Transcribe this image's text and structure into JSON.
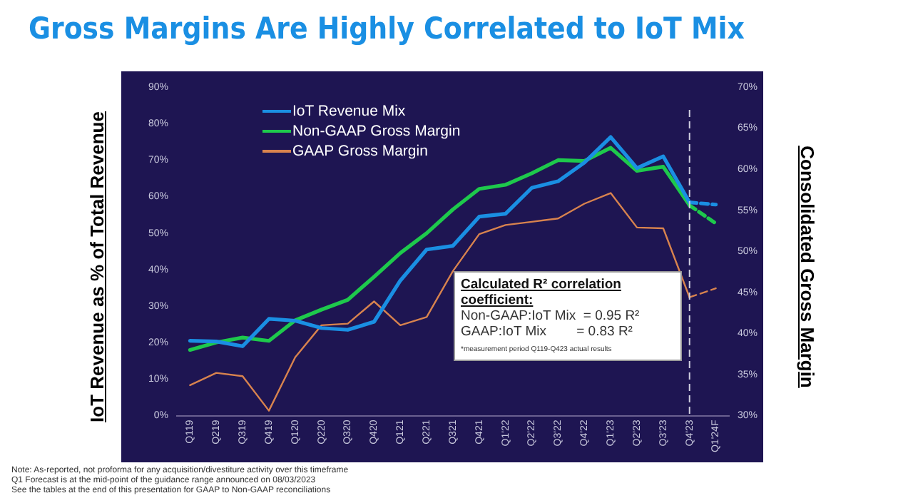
{
  "chart_data": {
    "type": "line",
    "title": "Gross Margins Are Highly Correlated to IoT Mix",
    "ylabel": "IoT Revenue  as % of Total Revenue",
    "y2label": "Consolidated Gross Margin",
    "categories": [
      "Q119",
      "Q219",
      "Q319",
      "Q419",
      "Q120",
      "Q220",
      "Q320",
      "Q420",
      "Q121",
      "Q221",
      "Q321",
      "Q421",
      "Q1'22",
      "Q2'22",
      "Q3'22",
      "Q4'22",
      "Q1'23",
      "Q2'23",
      "Q3'23",
      "Q4'23",
      "Q1'24F"
    ],
    "series": [
      {
        "name": "IoT Revenue Mix",
        "color": "#1a8fe3",
        "values": [
          20.5,
          20.3,
          19,
          26.5,
          26,
          24,
          23.5,
          25.7,
          37,
          45.5,
          46.5,
          54.5,
          55.3,
          62.4,
          64.2,
          69.3,
          76.3,
          67.8,
          71,
          58.4,
          null
        ]
      },
      {
        "name": "Non-GAAP Gross Margin",
        "color": "#1ec94c",
        "axis": "y2",
        "values": [
          38,
          38.9,
          39.5,
          39.1,
          41.6,
          42.9,
          44.1,
          46.9,
          49.8,
          52.2,
          55.1,
          57.6,
          58.1,
          59.5,
          61.1,
          61,
          62.6,
          59.8,
          60.3,
          55.6,
          null
        ]
      },
      {
        "name": "GAAP Gross Margin",
        "color": "#d8834e",
        "axis": "y2",
        "values": [
          33.7,
          35.2,
          34.8,
          30.6,
          37.1,
          41,
          41.2,
          43.9,
          41,
          42,
          47.6,
          52.1,
          53.2,
          53.6,
          54,
          55.8,
          57.1,
          52.9,
          52.8,
          44.4,
          null
        ]
      },
      {
        "color": "#1a8fe3",
        "line_style": "dashed",
        "values": [
          null,
          null,
          null,
          null,
          null,
          null,
          null,
          null,
          null,
          null,
          null,
          null,
          null,
          null,
          null,
          null,
          null,
          null,
          null,
          58.4,
          57.8
        ]
      },
      {
        "color": "#1ec94c",
        "axis": "y2",
        "line_style": "dashed",
        "values": [
          null,
          null,
          null,
          null,
          null,
          null,
          null,
          null,
          null,
          null,
          null,
          null,
          null,
          null,
          null,
          null,
          null,
          null,
          null,
          55.6,
          53.4
        ]
      },
      {
        "color": "#d8834e",
        "axis": "y2",
        "line_style": "dashed",
        "values": [
          null,
          null,
          null,
          null,
          null,
          null,
          null,
          null,
          null,
          null,
          null,
          null,
          null,
          null,
          null,
          null,
          null,
          null,
          null,
          44.4,
          45.5
        ]
      }
    ],
    "ylim": [
      0,
      90
    ],
    "yticks": [
      {
        "value": 0,
        "label": "0%"
      },
      {
        "value": 10,
        "label": "10%"
      },
      {
        "value": 20,
        "label": "20%"
      },
      {
        "value": 30,
        "label": "30%"
      },
      {
        "value": 40,
        "label": "40%"
      },
      {
        "value": 50,
        "label": "50%"
      },
      {
        "value": 60,
        "label": "60%"
      },
      {
        "value": 70,
        "label": "70%"
      },
      {
        "value": 80,
        "label": "80%"
      },
      {
        "value": 90,
        "label": "90%"
      }
    ],
    "y2lim": [
      30,
      70
    ],
    "y2ticks": [
      {
        "value": 30,
        "label": "30%"
      },
      {
        "value": 35,
        "label": "35%"
      },
      {
        "value": 40,
        "label": "40%"
      },
      {
        "value": 45,
        "label": "45%"
      },
      {
        "value": 50,
        "label": "50%"
      },
      {
        "value": 55,
        "label": "55%"
      },
      {
        "value": 60,
        "label": "60%"
      },
      {
        "value": 65,
        "label": "65%"
      },
      {
        "value": 70,
        "label": "70%"
      }
    ],
    "ref_lines": [
      {
        "axis": "x",
        "value": "Q4'23",
        "color": "#d0d0e0",
        "line_style": "dashed"
      }
    ],
    "grid": false,
    "legend": "top left",
    "marker": "none",
    "annotations": [
      "Calculated R² correlation coefficient:",
      "Non-GAAP:IoT Mix  = 0.95 R²",
      "GAAP:IoT Mix        = 0.83 R²",
      "*measurement period Q119-Q423 actual results",
      "Note: As-reported, not proforma for any acquisition/divestiture activity over this timeframe",
      "Q1 Forecast is at the mid-point of the guidance range announced on 08/03/2023",
      "See the tables at the end of this presentation for GAAP to Non-GAAP reconciliations"
    ]
  }
}
